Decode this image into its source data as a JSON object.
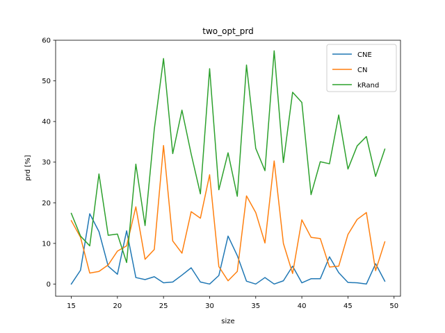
{
  "chart_data": {
    "type": "line",
    "title": "two_opt_prd",
    "xlabel": "size",
    "ylabel": "prd [%]",
    "xlim": [
      13.3,
      50.7
    ],
    "ylim": [
      -3.0,
      60.0
    ],
    "xticks": [
      15,
      20,
      25,
      30,
      35,
      40,
      45,
      50
    ],
    "yticks": [
      0,
      10,
      20,
      30,
      40,
      50,
      60
    ],
    "legend_position": "top-right",
    "grid": false,
    "x": [
      15,
      16,
      17,
      18,
      19,
      20,
      21,
      22,
      23,
      24,
      25,
      26,
      27,
      28,
      29,
      30,
      31,
      32,
      33,
      34,
      35,
      36,
      37,
      38,
      39,
      40,
      41,
      42,
      43,
      44,
      45,
      46,
      47,
      48,
      49
    ],
    "series": [
      {
        "name": "CNE",
        "color": "#1f77b4",
        "values": [
          0.0,
          3.4,
          17.3,
          12.9,
          4.4,
          2.4,
          13.1,
          1.6,
          1.1,
          1.8,
          0.3,
          0.5,
          2.2,
          4.0,
          0.5,
          0.0,
          2.1,
          11.8,
          7.0,
          0.7,
          0.0,
          1.6,
          0.0,
          0.8,
          4.4,
          0.3,
          1.3,
          1.3,
          6.7,
          2.8,
          0.4,
          0.3,
          0.0,
          5.0,
          0.7
        ]
      },
      {
        "name": "CN",
        "color": "#ff7f0e",
        "values": [
          15.6,
          11.5,
          2.7,
          3.1,
          4.7,
          8.1,
          9.4,
          19.0,
          6.1,
          8.5,
          34.1,
          10.6,
          7.6,
          17.8,
          16.2,
          26.9,
          4.3,
          0.8,
          3.1,
          21.7,
          17.6,
          10.1,
          30.3,
          10.0,
          2.6,
          15.8,
          11.5,
          11.2,
          4.2,
          4.4,
          12.2,
          15.9,
          17.6,
          3.3,
          10.4
        ]
      },
      {
        "name": "kRand",
        "color": "#2ca02c",
        "values": [
          17.4,
          11.8,
          9.4,
          27.1,
          12.0,
          12.3,
          5.3,
          29.5,
          14.4,
          38.1,
          55.5,
          32.1,
          42.8,
          32.0,
          22.2,
          53.0,
          23.2,
          32.3,
          21.6,
          53.9,
          33.4,
          27.9,
          57.4,
          29.9,
          47.2,
          44.7,
          22.0,
          30.1,
          29.6,
          41.6,
          28.3,
          34.0,
          36.3,
          26.5,
          33.2
        ]
      }
    ]
  }
}
